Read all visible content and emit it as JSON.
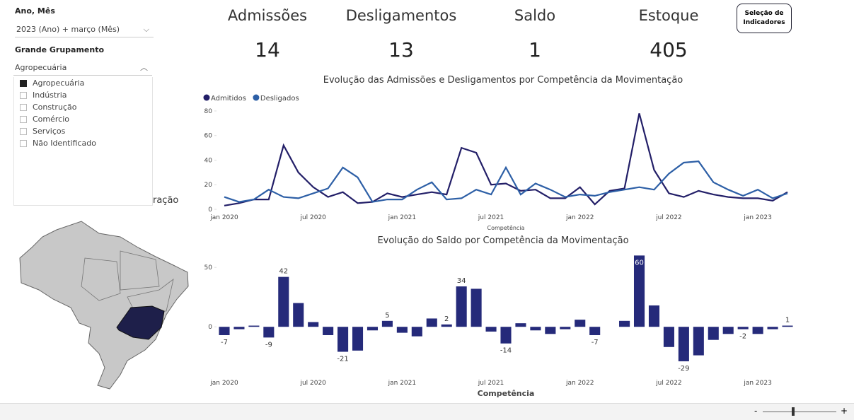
{
  "filters": {
    "period_label": "Ano, Mês",
    "period_value": "2023 (Ano) + março (Mês)",
    "group_label": "Grande Grupamento",
    "group_value": "Agropecuária",
    "options": [
      {
        "label": "Agropecuária",
        "checked": true
      },
      {
        "label": "Indústria",
        "checked": false
      },
      {
        "label": "Construção",
        "checked": false
      },
      {
        "label": "Comércio",
        "checked": false
      },
      {
        "label": "Serviços",
        "checked": false
      },
      {
        "label": "Não Identificado",
        "checked": false
      }
    ]
  },
  "map_title_fragment": "ração",
  "kpis": [
    {
      "label": "Admissões",
      "value": 14
    },
    {
      "label": "Desligamentos",
      "value": 13
    },
    {
      "label": "Saldo",
      "value": 1
    },
    {
      "label": "Estoque",
      "value": 405
    }
  ],
  "button": "Seleção de Indicadores",
  "chart_data": [
    {
      "type": "line",
      "title": "Evolução das Admissões e Desligamentos por Competência da Movimentação",
      "x_label": "Competência",
      "categories": [
        "jan 2020",
        null,
        null,
        null,
        null,
        null,
        "jul 2020",
        null,
        null,
        null,
        null,
        null,
        "jan 2021",
        null,
        null,
        null,
        null,
        null,
        "jul 2021",
        null,
        null,
        null,
        null,
        null,
        "jan 2022",
        null,
        null,
        null,
        null,
        null,
        "jul 2022",
        null,
        null,
        null,
        null,
        null,
        "jan 2023",
        null,
        null
      ],
      "series": [
        {
          "name": "Admitidos",
          "color": "#231f68",
          "values": [
            3,
            5,
            8,
            8,
            52,
            30,
            18,
            10,
            14,
            5,
            6,
            13,
            10,
            12,
            14,
            12,
            50,
            46,
            20,
            21,
            15,
            16,
            9,
            9,
            18,
            4,
            15,
            17,
            78,
            32,
            13,
            10,
            15,
            12,
            10,
            9,
            9,
            7,
            14
          ]
        },
        {
          "name": "Desligados",
          "color": "#2d5fa6",
          "values": [
            10,
            6,
            8,
            16,
            10,
            9,
            13,
            17,
            34,
            26,
            6,
            8,
            8,
            16,
            22,
            8,
            9,
            16,
            12,
            34,
            12,
            21,
            16,
            10,
            12,
            11,
            14,
            16,
            18,
            16,
            29,
            38,
            39,
            22,
            16,
            11,
            16,
            9,
            13
          ]
        }
      ],
      "ylim": [
        0,
        84
      ],
      "yticks": [
        0,
        20,
        40,
        60,
        80
      ],
      "legend": "top-left"
    },
    {
      "type": "bar",
      "title": "Evolução do Saldo por Competência da Movimentação",
      "x_label": "Competência",
      "categories": [
        "jan 2020",
        null,
        null,
        null,
        null,
        null,
        "jul 2020",
        null,
        null,
        null,
        null,
        null,
        "jan 2021",
        null,
        null,
        null,
        null,
        null,
        "jul 2021",
        null,
        null,
        null,
        null,
        null,
        "jan 2022",
        null,
        null,
        null,
        null,
        null,
        "jul 2022",
        null,
        null,
        null,
        null,
        null,
        "jan 2023",
        null,
        null
      ],
      "values": [
        -7,
        -2,
        1,
        -9,
        42,
        20,
        4,
        -7,
        -21,
        -20,
        -3,
        5,
        -5,
        -8,
        7,
        2,
        34,
        32,
        -4,
        -14,
        3,
        -3,
        -6,
        -2,
        6,
        -7,
        0,
        5,
        60,
        18,
        -17,
        -29,
        -24,
        -11,
        -6,
        -2,
        -6,
        -2,
        1
      ],
      "value_labels": [
        "-7",
        null,
        null,
        "-9",
        "42",
        null,
        null,
        null,
        "-21",
        null,
        null,
        "5",
        null,
        null,
        null,
        "2",
        "34",
        null,
        null,
        "-14",
        null,
        null,
        null,
        null,
        null,
        "-7",
        null,
        null,
        "60",
        null,
        null,
        "-29",
        null,
        null,
        null,
        "-2",
        null,
        null,
        "1"
      ],
      "color": "#252a7a",
      "ylim": [
        -32,
        62
      ],
      "yticks": [
        0,
        50
      ]
    }
  ],
  "zoom": {
    "minus": "-",
    "plus": "+"
  }
}
